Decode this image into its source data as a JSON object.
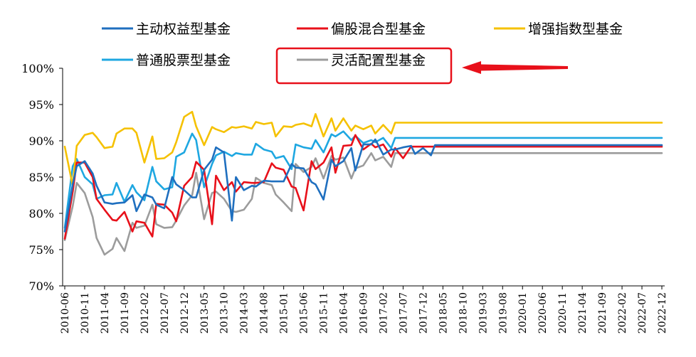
{
  "chart_data": {
    "type": "line",
    "title": "",
    "xlabel": "",
    "ylabel": "",
    "ylim": [
      70,
      100
    ],
    "y_ticks": [
      70,
      75,
      80,
      85,
      90,
      95,
      100
    ],
    "y_tick_format": "{v}%",
    "grid": false,
    "legend_position": "top",
    "x_ticks": [
      "2010-06",
      "2010-11",
      "2011-04",
      "2011-09",
      "2012-02",
      "2012-07",
      "2012-12",
      "2013-05",
      "2013-10",
      "2014-03",
      "2014-08",
      "2015-01",
      "2015-06",
      "2015-11",
      "2016-04",
      "2016-09",
      "2017-02",
      "2017-07",
      "2017-12",
      "2018-05",
      "2018-10",
      "2019-03",
      "2019-08",
      "2020-01",
      "2020-06",
      "2020-11",
      "2021-04",
      "2021-09",
      "2022-02",
      "2022-07",
      "2022-12"
    ],
    "x": [
      "2010-06",
      "2010-08",
      "2010-09",
      "2010-11",
      "2011-01",
      "2011-02",
      "2011-04",
      "2011-06",
      "2011-07",
      "2011-09",
      "2011-11",
      "2011-12",
      "2012-02",
      "2012-04",
      "2012-05",
      "2012-07",
      "2012-09",
      "2012-10",
      "2012-12",
      "2013-02",
      "2013-03",
      "2013-05",
      "2013-07",
      "2013-08",
      "2013-10",
      "2013-12",
      "2014-01",
      "2014-03",
      "2014-05",
      "2014-06",
      "2014-08",
      "2014-10",
      "2014-11",
      "2015-01",
      "2015-03",
      "2015-04",
      "2015-06",
      "2015-08",
      "2015-09",
      "2015-11",
      "2016-01",
      "2016-02",
      "2016-04",
      "2016-06",
      "2016-07",
      "2016-09",
      "2016-11",
      "2016-12",
      "2017-02",
      "2017-04",
      "2017-05",
      "2017-07",
      "2017-09",
      "2017-10",
      "2017-12",
      "2018-02",
      "2018-03",
      "2018-05",
      "2018-07",
      "2018-08",
      "2018-10",
      "2018-12",
      "2019-01",
      "2019-03",
      "2019-05",
      "2019-06",
      "2019-08",
      "2019-10",
      "2019-11",
      "2020-01",
      "2020-03",
      "2020-04",
      "2020-06",
      "2020-08",
      "2020-09",
      "2020-11",
      "2021-01",
      "2021-02",
      "2021-04",
      "2021-06",
      "2021-07",
      "2021-09",
      "2021-11",
      "2021-12",
      "2022-02",
      "2022-04",
      "2022-05",
      "2022-07",
      "2022-09",
      "2022-10",
      "2022-12"
    ],
    "series": [
      {
        "name": "主动权益型基金",
        "color": "#1f6fbf",
        "values": [
          77.5,
          84.0,
          86.5,
          87.2,
          85.5,
          83.8,
          81.5,
          81.3,
          81.4,
          81.5,
          82.5,
          80.3,
          82.6,
          82.2,
          81.2,
          80.7,
          85.0,
          84.0,
          83.2,
          82.2,
          82.2,
          86.0,
          87.4,
          89.1,
          88.4,
          79.0,
          85.0,
          83.2,
          83.8,
          83.7,
          84.5,
          84.4,
          84.4,
          84.4,
          86.8,
          86.3,
          86.2,
          84.3,
          84.0,
          81.9,
          87.4,
          86.5,
          87.2,
          89.0,
          85.9,
          89.5,
          89.5,
          90.2,
          88.1,
          88.8,
          88.8,
          89.1,
          89.3,
          88.2,
          89.0,
          88.0,
          89.4,
          89.4,
          89.4,
          89.4,
          89.4,
          89.4,
          89.4,
          89.4,
          89.4,
          89.4,
          89.4,
          89.4,
          89.4,
          89.4,
          89.4,
          89.4,
          89.4,
          89.4,
          89.4,
          89.4,
          89.4,
          89.4,
          89.4,
          89.4,
          89.4,
          89.4,
          89.4,
          89.4,
          89.4,
          89.4,
          89.4,
          89.4,
          89.4,
          89.4,
          89.4
        ]
      },
      {
        "name": "偏股混合型基金",
        "color": "#e8101a",
        "values": [
          76.5,
          83.0,
          87.0,
          87.0,
          85.0,
          82.0,
          80.5,
          79.1,
          79.0,
          80.2,
          77.5,
          78.9,
          78.7,
          76.8,
          81.3,
          81.2,
          80.1,
          78.9,
          83.8,
          85.0,
          87.1,
          86.0,
          78.5,
          85.2,
          83.2,
          84.3,
          83.0,
          84.3,
          84.2,
          84.2,
          84.3,
          86.9,
          86.3,
          86.0,
          83.7,
          83.5,
          80.4,
          87.2,
          86.1,
          87.0,
          89.1,
          85.6,
          89.3,
          89.4,
          90.8,
          88.8,
          89.6,
          89.1,
          89.5,
          87.8,
          89.0,
          87.6,
          89.2,
          89.2,
          89.2,
          89.2,
          89.2,
          89.2,
          89.2,
          89.2,
          89.2,
          89.2,
          89.2,
          89.2,
          89.2,
          89.2,
          89.2,
          89.2,
          89.2,
          89.2,
          89.2,
          89.2,
          89.2,
          89.2,
          89.2,
          89.2,
          89.2,
          89.2,
          89.2,
          89.2,
          89.2,
          89.2,
          89.2,
          89.2,
          89.2,
          89.2,
          89.2,
          89.2,
          89.2,
          89.2,
          89.2
        ]
      },
      {
        "name": "增强指数型基金",
        "color": "#f5c100",
        "values": [
          89.2,
          83.8,
          89.3,
          90.8,
          91.1,
          90.5,
          89.0,
          89.2,
          91.0,
          91.7,
          91.7,
          91.1,
          87.0,
          90.6,
          87.5,
          87.6,
          88.4,
          89.8,
          93.3,
          94.0,
          92.0,
          89.4,
          91.9,
          91.6,
          91.2,
          91.9,
          91.8,
          92.0,
          91.7,
          92.6,
          92.3,
          92.5,
          90.6,
          92.0,
          91.9,
          92.2,
          92.4,
          92.0,
          93.7,
          90.6,
          93.1,
          91.4,
          93.1,
          91.4,
          92.1,
          91.6,
          92.1,
          91.0,
          92.2,
          91.0,
          92.5,
          92.5,
          92.5,
          92.5,
          92.5,
          92.5,
          92.5,
          92.5,
          92.5,
          92.5,
          92.5,
          92.5,
          92.5,
          92.5,
          92.5,
          92.5,
          92.5,
          92.5,
          92.5,
          92.5,
          92.5,
          92.5,
          92.5,
          92.5,
          92.5,
          92.5,
          92.5,
          92.5,
          92.5,
          92.5,
          92.5,
          92.5,
          92.5,
          92.5,
          92.5,
          92.5,
          92.5,
          92.5,
          92.5,
          92.5,
          92.5
        ]
      },
      {
        "name": "普通股票型基金",
        "color": "#1ea7e1",
        "values": [
          78.0,
          86.5,
          87.5,
          85.0,
          84.0,
          82.0,
          82.5,
          82.6,
          84.2,
          81.6,
          83.9,
          82.9,
          81.8,
          86.4,
          84.4,
          83.3,
          83.6,
          87.8,
          88.4,
          91.0,
          90.1,
          83.6,
          86.8,
          88.0,
          88.5,
          87.9,
          88.3,
          88.1,
          88.1,
          89.6,
          88.8,
          88.5,
          87.6,
          87.9,
          86.1,
          89.5,
          89.1,
          88.9,
          90.1,
          88.4,
          90.9,
          90.6,
          91.3,
          90.1,
          90.7,
          89.7,
          90.1,
          89.8,
          90.4,
          89.0,
          90.4,
          90.4,
          90.4,
          90.4,
          90.4,
          90.4,
          90.4,
          90.4,
          90.4,
          90.4,
          90.4,
          90.4,
          90.4,
          90.4,
          90.4,
          90.4,
          90.4,
          90.4,
          90.4,
          90.4,
          90.4,
          90.4,
          90.4,
          90.4,
          90.4,
          90.4,
          90.4,
          90.4,
          90.4,
          90.4,
          90.4,
          90.4,
          90.4,
          90.4,
          90.4,
          90.4,
          90.4,
          90.4,
          90.4,
          90.4,
          90.4
        ]
      },
      {
        "name": "灵活配置型基金",
        "color": "#9c9c9c",
        "values": [
          76.3,
          81.0,
          84.2,
          82.8,
          79.5,
          76.6,
          74.3,
          75.1,
          76.6,
          74.8,
          78.7,
          78.0,
          78.3,
          81.2,
          78.5,
          78.0,
          78.1,
          79.0,
          81.1,
          82.5,
          85.6,
          79.2,
          82.8,
          83.0,
          82.0,
          80.3,
          80.2,
          80.5,
          82.0,
          84.9,
          84.2,
          83.9,
          82.6,
          81.5,
          80.3,
          86.8,
          85.7,
          86.4,
          87.6,
          84.8,
          87.9,
          87.4,
          87.7,
          84.8,
          86.2,
          86.6,
          88.3,
          87.3,
          87.8,
          86.4,
          88.3,
          88.3,
          88.3,
          88.3,
          88.3,
          88.3,
          88.3,
          88.3,
          88.3,
          88.3,
          88.3,
          88.3,
          88.3,
          88.3,
          88.3,
          88.3,
          88.3,
          88.3,
          88.3,
          88.3,
          88.3,
          88.3,
          88.3,
          88.3,
          88.3,
          88.3,
          88.3,
          88.3,
          88.3,
          88.3,
          88.3,
          88.3,
          88.3,
          88.3,
          88.3,
          88.3,
          88.3,
          88.3,
          88.3,
          88.3,
          88.3
        ]
      }
    ],
    "annotation": {
      "type": "arrow",
      "target_series": "灵活配置型基金",
      "color": "#e8101a"
    }
  }
}
